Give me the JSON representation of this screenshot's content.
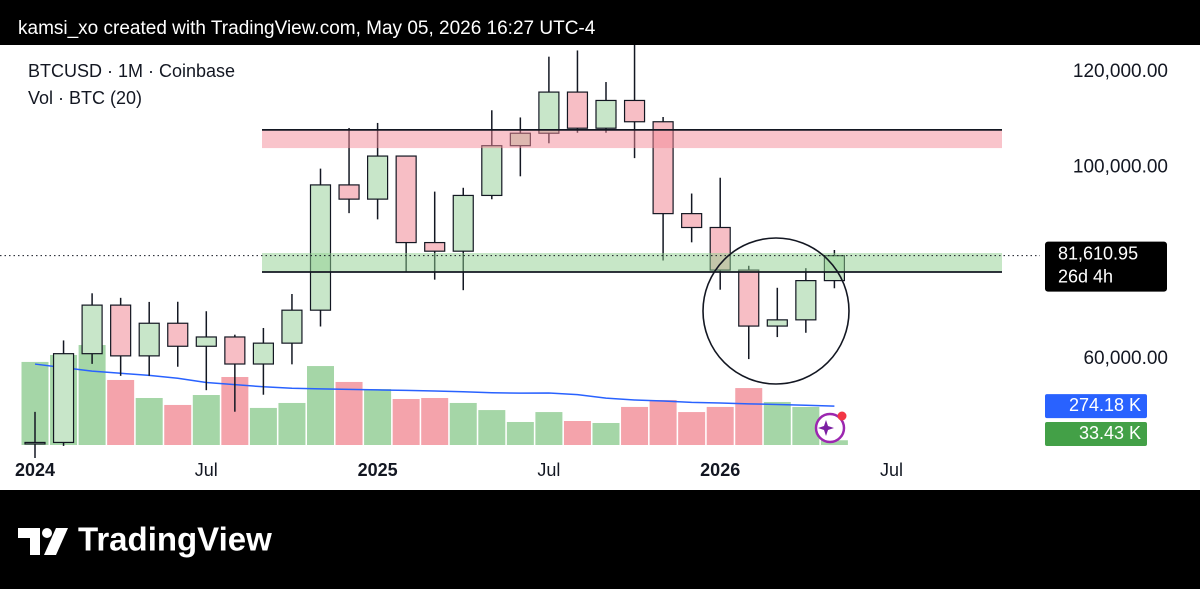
{
  "header": "kamsi_xo created with TradingView.com, May 05, 2026 16:27 UTC-4",
  "footer": {
    "brand": "TradingView"
  },
  "chart_data": {
    "type": "candlestick",
    "title": "BTCUSD · 1M · Coinbase",
    "subtitle": "Vol · BTC (20)",
    "categories": [
      "2024",
      null,
      null,
      null,
      null,
      null,
      "Jul",
      null,
      null,
      null,
      null,
      null,
      "2025",
      null,
      null,
      null,
      null,
      null,
      "Jul",
      null,
      null,
      null,
      null,
      null,
      "2026",
      null,
      null,
      null,
      null,
      null,
      "Jul"
    ],
    "open": [
      42280,
      42580,
      61130,
      71280,
      60670,
      67490,
      62680,
      64620,
      58970,
      63330,
      70220,
      96400,
      93430,
      102430,
      84350,
      82550,
      94200,
      104600,
      107200,
      115800,
      108250,
      114050,
      109600,
      90400,
      87500,
      78600,
      66900,
      68200,
      76400,
      null,
      null
    ],
    "high": [
      48970,
      63900,
      73750,
      72800,
      71950,
      71980,
      70000,
      65100,
      66500,
      73600,
      99800,
      108300,
      109350,
      102500,
      95000,
      95800,
      112000,
      110500,
      123200,
      124500,
      117900,
      126200,
      110600,
      94600,
      97900,
      79500,
      74900,
      79000,
      82800,
      null,
      null
    ],
    "low": [
      38500,
      41850,
      59000,
      56500,
      56500,
      58400,
      53500,
      49000,
      52550,
      58900,
      66800,
      90500,
      89200,
      78200,
      76600,
      74400,
      93400,
      98200,
      105100,
      107300,
      107300,
      102000,
      80600,
      84400,
      74500,
      60000,
      64600,
      65500,
      74800,
      null,
      null
    ],
    "close": [
      42580,
      61130,
      71280,
      60670,
      67490,
      62680,
      64620,
      58970,
      63330,
      70220,
      96400,
      93430,
      102430,
      84350,
      82550,
      94200,
      104600,
      107200,
      115800,
      108250,
      114050,
      109600,
      90400,
      87500,
      78600,
      66900,
      68200,
      76400,
      81610.95,
      null,
      null
    ],
    "up_color": "#c8e6c9",
    "down_color": "#f7bec5",
    "ylim": [
      32640,
      125640
    ],
    "yticks": [
      {
        "value": 120000,
        "label": "120,000.00"
      },
      {
        "value": 100000,
        "label": "100,000.00"
      },
      {
        "value": 60000,
        "label": "60,000.00"
      }
    ],
    "last_price": {
      "value": 81610.95,
      "label": "81,610.95"
    },
    "countdown": "26d 4h",
    "zones": [
      {
        "low": 104100,
        "high": 107900,
        "color": "#f48a98",
        "line_at": "high"
      },
      {
        "low": 78200,
        "high": 82170,
        "color": "#8fd08f",
        "line_at": "low"
      }
    ],
    "y2lim": [
      0,
      2817
    ],
    "volume": {
      "up_color": "#a5d6a7",
      "down_color": "#f4a3ab",
      "label_color": "#43a047",
      "values": [
        585,
        634,
        704,
        458,
        331,
        282,
        352,
        479,
        261,
        296,
        556,
        444,
        394,
        324,
        331,
        296,
        246,
        162,
        232,
        169,
        155,
        268,
        317,
        232,
        268,
        401,
        303,
        268,
        33.43,
        null,
        null
      ],
      "value_labels": [
        null,
        null,
        null,
        null,
        null,
        null,
        null,
        null,
        null,
        null,
        null,
        null,
        null,
        null,
        null,
        null,
        null,
        null,
        null,
        null,
        null,
        null,
        null,
        null,
        null,
        null,
        null,
        null,
        "33.43 K",
        null,
        null
      ]
    },
    "moving_average": {
      "color": "#2962ff",
      "values": [
        570,
        545,
        520,
        505,
        490,
        470,
        440,
        425,
        410,
        400,
        395,
        392,
        388,
        385,
        380,
        375,
        368,
        365,
        366,
        355,
        330,
        317,
        310,
        300,
        296,
        290,
        285,
        280,
        274.18,
        null,
        null
      ],
      "value_labels": [
        null,
        null,
        null,
        null,
        null,
        null,
        null,
        null,
        null,
        null,
        null,
        null,
        null,
        null,
        null,
        null,
        null,
        null,
        null,
        null,
        null,
        null,
        null,
        null,
        null,
        null,
        null,
        null,
        "274.18 K",
        null,
        null
      ]
    }
  }
}
